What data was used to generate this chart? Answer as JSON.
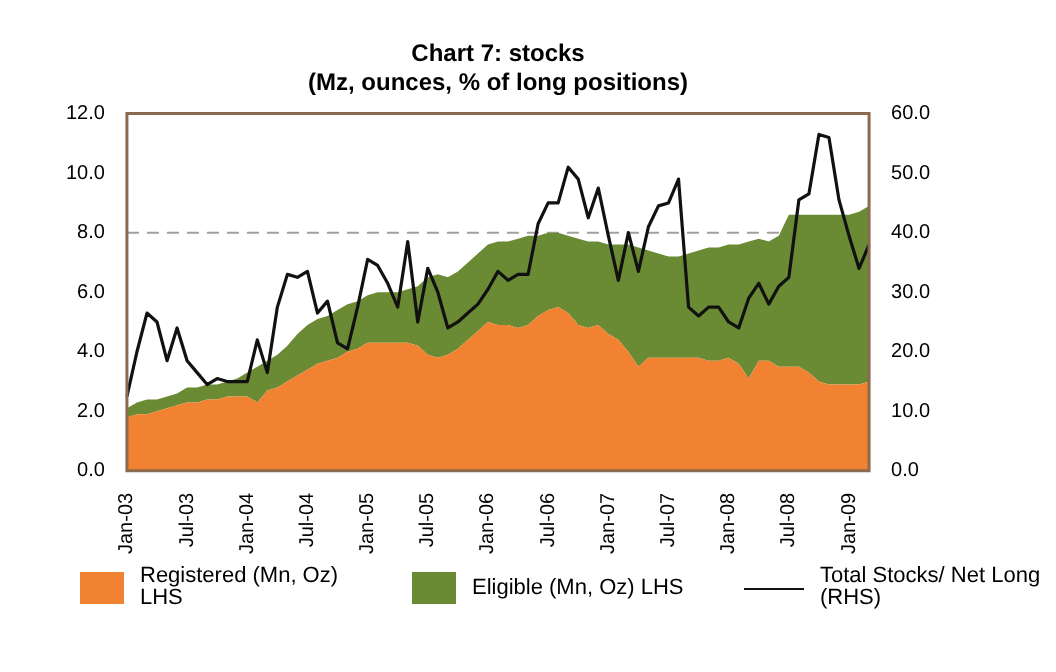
{
  "chart_data": {
    "type": "area",
    "title": "Chart 7: stocks",
    "subtitle": "(Mz, ounces, % of long positions)",
    "categories": [
      "Jan-03",
      null,
      null,
      null,
      null,
      null,
      "Jul-03",
      null,
      null,
      null,
      null,
      null,
      "Jan-04",
      null,
      null,
      null,
      null,
      null,
      "Jul-04",
      null,
      null,
      null,
      null,
      null,
      "Jan-05",
      null,
      null,
      null,
      null,
      null,
      "Jul-05",
      null,
      null,
      null,
      null,
      null,
      "Jan-06",
      null,
      null,
      null,
      null,
      null,
      "Jul-06",
      null,
      null,
      null,
      null,
      null,
      "Jan-07",
      null,
      null,
      null,
      null,
      null,
      "Jul-07",
      null,
      null,
      null,
      null,
      null,
      "Jan-08",
      null,
      null,
      null,
      null,
      null,
      "Jul-08",
      null,
      null,
      null,
      null,
      null,
      "Jan-09",
      null,
      null
    ],
    "stacked": true,
    "series": [
      {
        "name": "Registered (Mn, Oz) LHS",
        "type": "area",
        "color": "#f08232",
        "values": [
          1.8,
          1.9,
          1.9,
          2.0,
          2.1,
          2.2,
          2.3,
          2.3,
          2.4,
          2.4,
          2.5,
          2.5,
          2.5,
          2.3,
          2.7,
          2.8,
          3.0,
          3.2,
          3.4,
          3.6,
          3.7,
          3.8,
          4.0,
          4.1,
          4.3,
          4.3,
          4.3,
          4.3,
          4.3,
          4.2,
          3.9,
          3.8,
          3.9,
          4.1,
          4.4,
          4.7,
          5.0,
          4.9,
          4.9,
          4.8,
          4.9,
          5.2,
          5.4,
          5.5,
          5.3,
          4.9,
          4.8,
          4.9,
          4.6,
          4.4,
          4.0,
          3.5,
          3.8,
          3.8,
          3.8,
          3.8,
          3.8,
          3.8,
          3.7,
          3.7,
          3.8,
          3.6,
          3.1,
          3.7,
          3.7,
          3.5,
          3.5,
          3.5,
          3.3,
          3.0,
          2.9,
          2.9,
          2.9,
          2.9,
          3.0
        ]
      },
      {
        "name": "Eligible (Mn, Oz) LHS",
        "type": "area",
        "color": "#6b8a34",
        "values": [
          0.3,
          0.4,
          0.5,
          0.4,
          0.4,
          0.4,
          0.5,
          0.5,
          0.5,
          0.5,
          0.5,
          0.6,
          0.8,
          1.2,
          1.0,
          1.1,
          1.2,
          1.4,
          1.5,
          1.5,
          1.5,
          1.6,
          1.6,
          1.6,
          1.6,
          1.7,
          1.7,
          1.7,
          1.8,
          2.0,
          2.6,
          2.8,
          2.6,
          2.6,
          2.6,
          2.6,
          2.6,
          2.8,
          2.8,
          3.0,
          3.0,
          2.7,
          2.6,
          2.5,
          2.6,
          2.9,
          2.9,
          2.8,
          3.0,
          3.2,
          3.6,
          4.0,
          3.6,
          3.5,
          3.4,
          3.4,
          3.5,
          3.6,
          3.8,
          3.8,
          3.8,
          4.0,
          4.6,
          4.1,
          4.0,
          4.4,
          5.1,
          5.1,
          5.3,
          5.6,
          5.7,
          5.7,
          5.7,
          5.8,
          5.9
        ]
      },
      {
        "name": "Total Stocks/ Net Long (RHS)",
        "type": "line",
        "axis": "y2",
        "color": "#111111",
        "values": [
          12.5,
          20,
          26.5,
          25,
          18.5,
          24,
          18.5,
          16.5,
          14.5,
          15.5,
          15,
          15,
          15,
          22,
          16.5,
          27.5,
          33,
          32.5,
          33.5,
          26.5,
          28.5,
          21.5,
          20.5,
          27.5,
          35.5,
          34.5,
          31.5,
          27.5,
          38.5,
          25,
          34,
          30,
          24,
          25,
          26.5,
          28,
          30.5,
          33.5,
          32,
          33,
          33,
          41.5,
          45,
          45,
          51,
          49,
          42.5,
          47.5,
          39.5,
          32,
          40,
          33.5,
          41,
          44.5,
          45,
          49,
          27.5,
          26,
          27.5,
          27.5,
          25,
          24,
          29,
          31.5,
          28,
          31,
          32.5,
          45.5,
          46.5,
          56.5,
          56,
          45.5,
          39.5,
          34,
          38
        ]
      }
    ],
    "ylim": [
      0,
      12
    ],
    "yticks": [
      {
        "value": 0,
        "label": "0.0"
      },
      {
        "value": 2,
        "label": "2.0"
      },
      {
        "value": 4,
        "label": "4.0"
      },
      {
        "value": 6,
        "label": "6.0"
      },
      {
        "value": 8,
        "label": "8.0"
      },
      {
        "value": 10,
        "label": "10.0"
      },
      {
        "value": 12,
        "label": "12.0"
      }
    ],
    "y2lim": [
      0,
      60
    ],
    "y2ticks": [
      {
        "value": 0,
        "label": "0.0"
      },
      {
        "value": 10,
        "label": "10.0"
      },
      {
        "value": 20,
        "label": "20.0"
      },
      {
        "value": 30,
        "label": "30.0"
      },
      {
        "value": 40,
        "label": "40.0"
      },
      {
        "value": 50,
        "label": "50.0"
      },
      {
        "value": 60,
        "label": "60.0"
      }
    ],
    "ref_lines": [
      {
        "axis": "y",
        "value": 8,
        "color": "#a0a0a0",
        "line_style": "dashed"
      }
    ],
    "grid": false,
    "legend": "bottom",
    "marker": "none",
    "line_style": "solid"
  }
}
